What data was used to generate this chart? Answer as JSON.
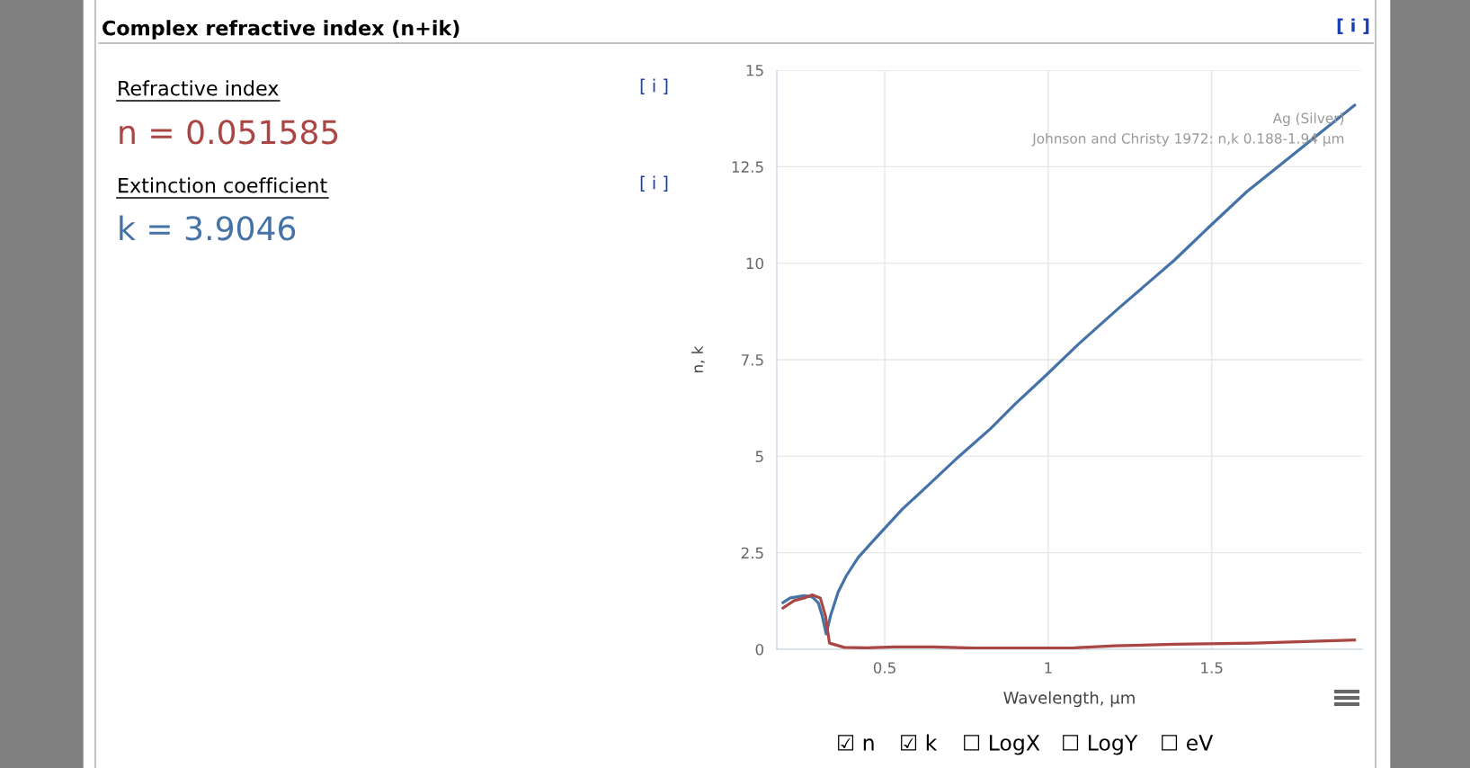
{
  "chart_data": [
    {
      "type": "other",
      "title": "Complex refractive index (n+ik)",
      "annotations": [
        "[ i ]",
        "Refractive index",
        "[ i ]",
        "n = 0.051585",
        "Extinction coefficient",
        "[ i ]",
        "k = 3.9046"
      ]
    },
    {
      "type": "line",
      "xlabel": "Wavelength, µm",
      "ylabel": "n, k",
      "xlim": [
        0.17,
        1.96
      ],
      "xticks": [
        0.5,
        1,
        1.5
      ],
      "ylim": [
        0,
        15
      ],
      "yticks": [
        0,
        2.5,
        5,
        7.5,
        10,
        12.5,
        15
      ],
      "grid": true,
      "legend": false,
      "marker": "none",
      "line_style": "solid",
      "annotations": [
        "Ag (Silver)",
        "Johnson and Christy 1972: n,k 0.188-1.94 µm",
        "☑ n",
        "☑ k",
        "☐ LogX",
        "☐ LogY",
        "☐ eV"
      ],
      "series": [
        {
          "color": "#4572a7",
          "x": [
            0.189,
            0.211,
            0.254,
            0.278,
            0.297,
            0.309,
            0.321,
            0.334,
            0.358,
            0.383,
            0.419,
            0.468,
            0.554,
            0.627,
            0.725,
            0.823,
            0.897,
            0.995,
            1.092,
            1.215,
            1.386,
            1.496,
            1.607,
            1.753,
            1.937
          ],
          "values": [
            1.21,
            1.33,
            1.39,
            1.36,
            1.2,
            0.86,
            0.4,
            0.86,
            1.49,
            1.91,
            2.38,
            2.84,
            3.63,
            4.2,
            4.98,
            5.71,
            6.34,
            7.11,
            7.9,
            8.83,
            10.08,
            10.97,
            11.85,
            12.84,
            14.09
          ]
        },
        {
          "color": "#aa4643",
          "x": [
            0.189,
            0.223,
            0.254,
            0.278,
            0.303,
            0.319,
            0.331,
            0.376,
            0.444,
            0.529,
            0.652,
            0.774,
            1.08,
            1.203,
            1.386,
            1.631,
            1.937
          ],
          "values": [
            1.07,
            1.26,
            1.33,
            1.41,
            1.33,
            0.86,
            0.16,
            0.05,
            0.04,
            0.06,
            0.06,
            0.03,
            0.04,
            0.09,
            0.13,
            0.16,
            0.24
          ]
        }
      ]
    }
  ]
}
